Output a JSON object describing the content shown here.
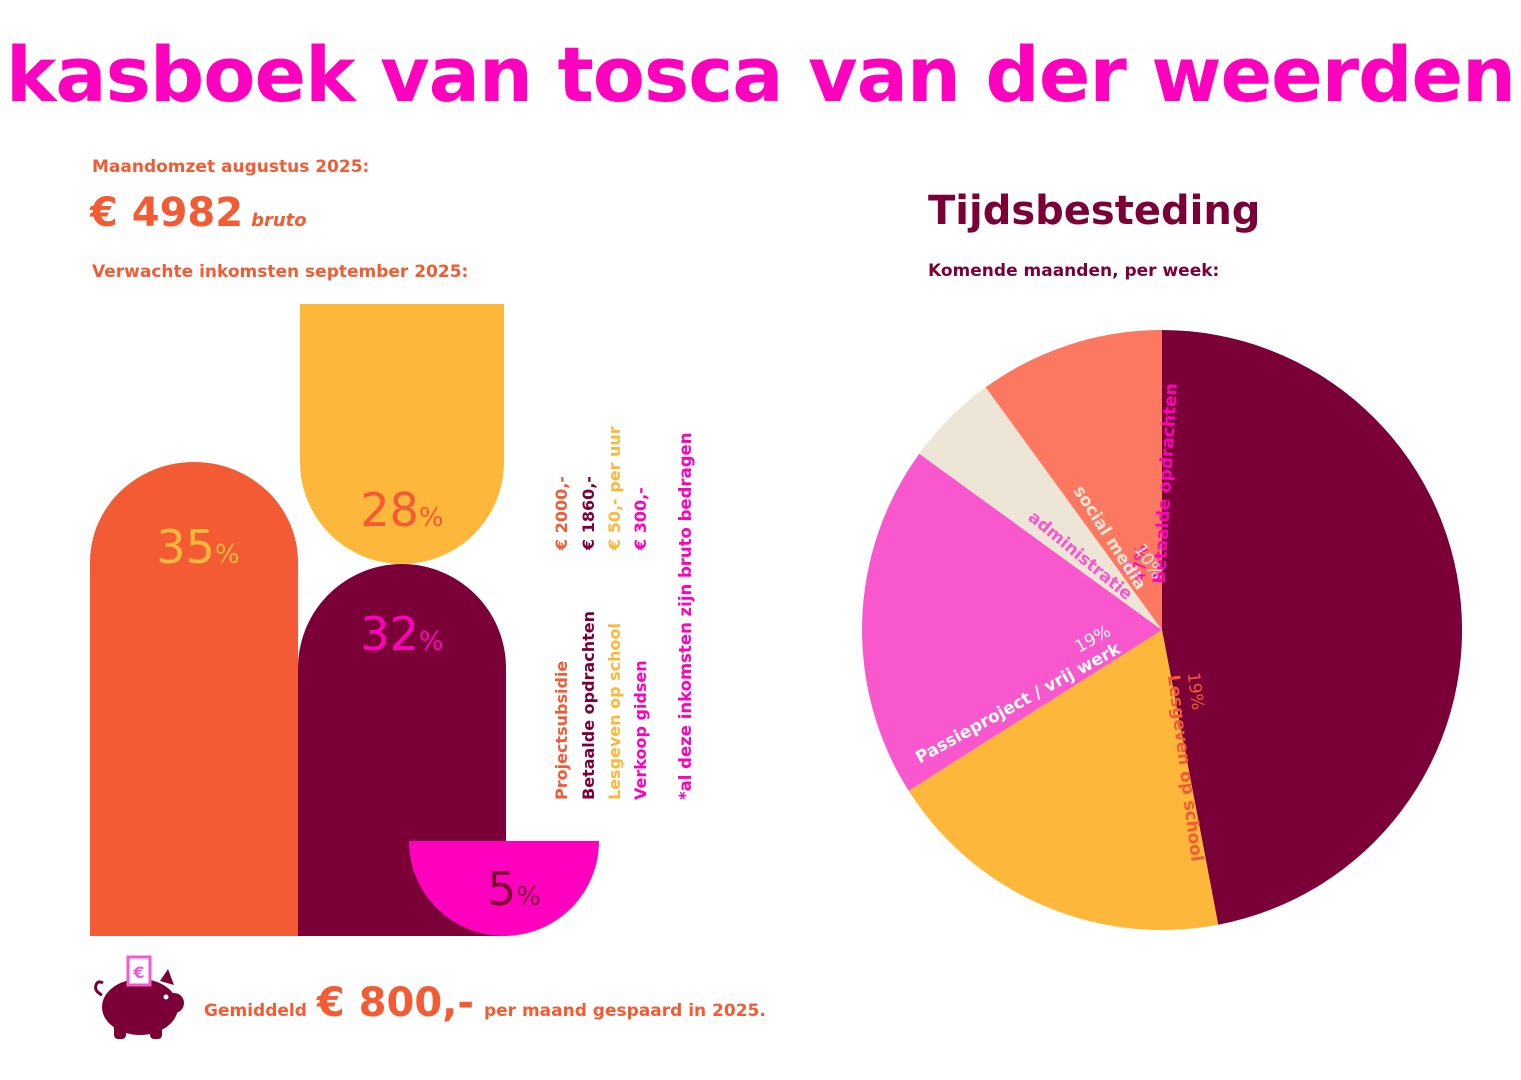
{
  "header": {
    "title": "kasboek van tosca van der weerden",
    "logo_symbol": "€"
  },
  "revenue": {
    "label": "Maandomzet augustus 2025:",
    "amount": "€ 4982",
    "unit": "bruto"
  },
  "expected": {
    "label": "Verwachte inkomsten september 2025:"
  },
  "colors": {
    "orange": "#F25B33",
    "yellow": "#FDB73A",
    "plum": "#7B0038",
    "magenta": "#FF00BF",
    "pink": "#F857CD",
    "salmon": "#FD7860",
    "beige": "#EDE5D5"
  },
  "chart_data": [
    {
      "type": "bar",
      "categories": [
        "Projectsubsidie",
        "Betaalde opdrachten",
        "Lesgeven op school",
        "Verkoop gidsen"
      ],
      "values": [
        35,
        32,
        28,
        5
      ],
      "value_labels": [
        "35",
        "32",
        "28",
        "5"
      ],
      "percent_sign": "%",
      "amounts": [
        "€ 2000,-",
        "€ 1860,-",
        "€ 50,- per uur",
        "€ 300,-"
      ],
      "note": "*al deze inkomsten zijn bruto bedragen"
    },
    {
      "type": "pie",
      "title": "Tijdsbesteding",
      "subtitle": "Komende maanden, per week:",
      "slices": [
        {
          "label": "Betaalde opdrachten",
          "pct": "47%",
          "value": 47,
          "color": "#7B0038",
          "label_color": "#FF00BF"
        },
        {
          "label": "Lesgeven op school",
          "pct": "19%",
          "value": 19,
          "color": "#FDB73A",
          "label_color": "#F25B33"
        },
        {
          "label": "Passieproject / vrij werk",
          "pct": "19%",
          "value": 19,
          "color": "#F857CD",
          "label_color": "#ffffff"
        },
        {
          "label": "administratie",
          "pct": "5%",
          "value": 5,
          "color": "#EDE5D5",
          "label_color": "#F857CD"
        },
        {
          "label": "social media",
          "pct": "10%",
          "value": 10,
          "color": "#FD7860",
          "label_color": "#EDE5D5"
        }
      ]
    }
  ],
  "savings": {
    "prefix": "Gemiddeld",
    "amount": "€ 800,-",
    "suffix": "per maand gespaard in 2025.",
    "icon": "piggy-bank-icon",
    "coin_symbol": "€"
  }
}
